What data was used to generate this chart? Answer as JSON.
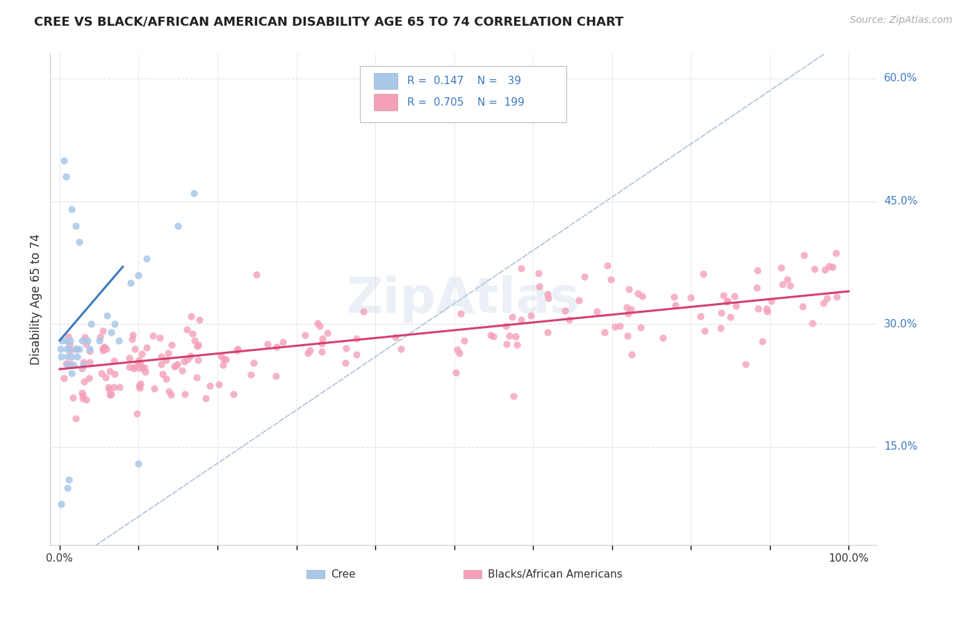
{
  "title": "CREE VS BLACK/AFRICAN AMERICAN DISABILITY AGE 65 TO 74 CORRELATION CHART",
  "source": "Source: ZipAtlas.com",
  "ylabel": "Disability Age 65 to 74",
  "cree_color": "#a8c8e8",
  "black_color": "#f4a0b8",
  "cree_line_color": "#3a7abf",
  "black_line_color": "#d44070",
  "dashed_line_color": "#a0b8d0",
  "legend_text_color": "#3a7abf",
  "right_label_color": "#3a7abf",
  "watermark": "ZipAtlas",
  "background_color": "#ffffff",
  "grid_color": "#d8d8e8",
  "title_color": "#222222",
  "ylabel_color": "#333333",
  "xtick_color": "#333333",
  "source_color": "#aaaaaa"
}
